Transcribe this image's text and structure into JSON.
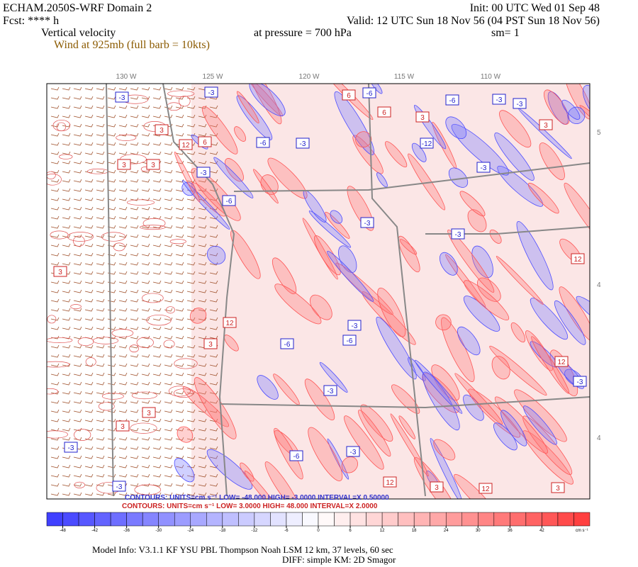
{
  "header": {
    "model": "ECHAM.2050S-WRF Domain 2",
    "init": "Init: 00 UTC Wed 01 Sep 48",
    "fcst": "Fcst: **** h",
    "valid": "Valid: 12 UTC Sun 18 Nov 56 (04 PST Sun 18 Nov 56)",
    "field": "Vertical velocity",
    "pressure": "at pressure =  700 hPa",
    "smooth": "sm= 1",
    "wind": "Wind at 925mb (full barb = 10kts)"
  },
  "map": {
    "lon_labels": [
      "130 W",
      "125 W",
      "120 W",
      "115 W",
      "110 W"
    ],
    "lat_labels": [
      "5",
      "4",
      "4"
    ],
    "contour_labels": [
      "-3",
      "-3",
      "-6",
      "-6",
      "-3",
      "-3",
      "6",
      "6",
      "3",
      "3",
      "12",
      "6",
      "-6",
      "-3",
      "-12",
      "3",
      "3",
      "3",
      "-3",
      "-3",
      "-6",
      "-3",
      "-3",
      "12",
      "3",
      "12",
      "-3",
      "-6",
      "3",
      "-6",
      "12",
      "-3",
      "-3",
      "3",
      "3",
      "-3",
      "-6",
      "-3",
      "12",
      "-3",
      "12",
      "3",
      "3"
    ]
  },
  "contour_info": {
    "negative": "CONTOURS:  UNITS=cm s⁻¹  LOW= -48.000  HIGH= -3.0000  INTERVAL=X 0.50000",
    "positive": "CONTOURS:  UNITS=cm s⁻¹  LOW=  3.0000     HIGH=  48.000     INTERVAL=X  2.0000"
  },
  "colorbar": {
    "ticks": [
      -48,
      -42,
      -36,
      -30,
      -24,
      -18,
      -12,
      -6,
      0,
      6,
      12,
      18,
      24,
      30,
      36,
      42
    ],
    "unit": "cm s⁻¹"
  },
  "footer": {
    "model_info": "Model Info: V3.1.1    KF     YSU PBL   Thompson     Noah LSM   12 km,    37 levels,    60 sec",
    "diff": "DIFF: simple KM: 2D Smagor"
  }
}
